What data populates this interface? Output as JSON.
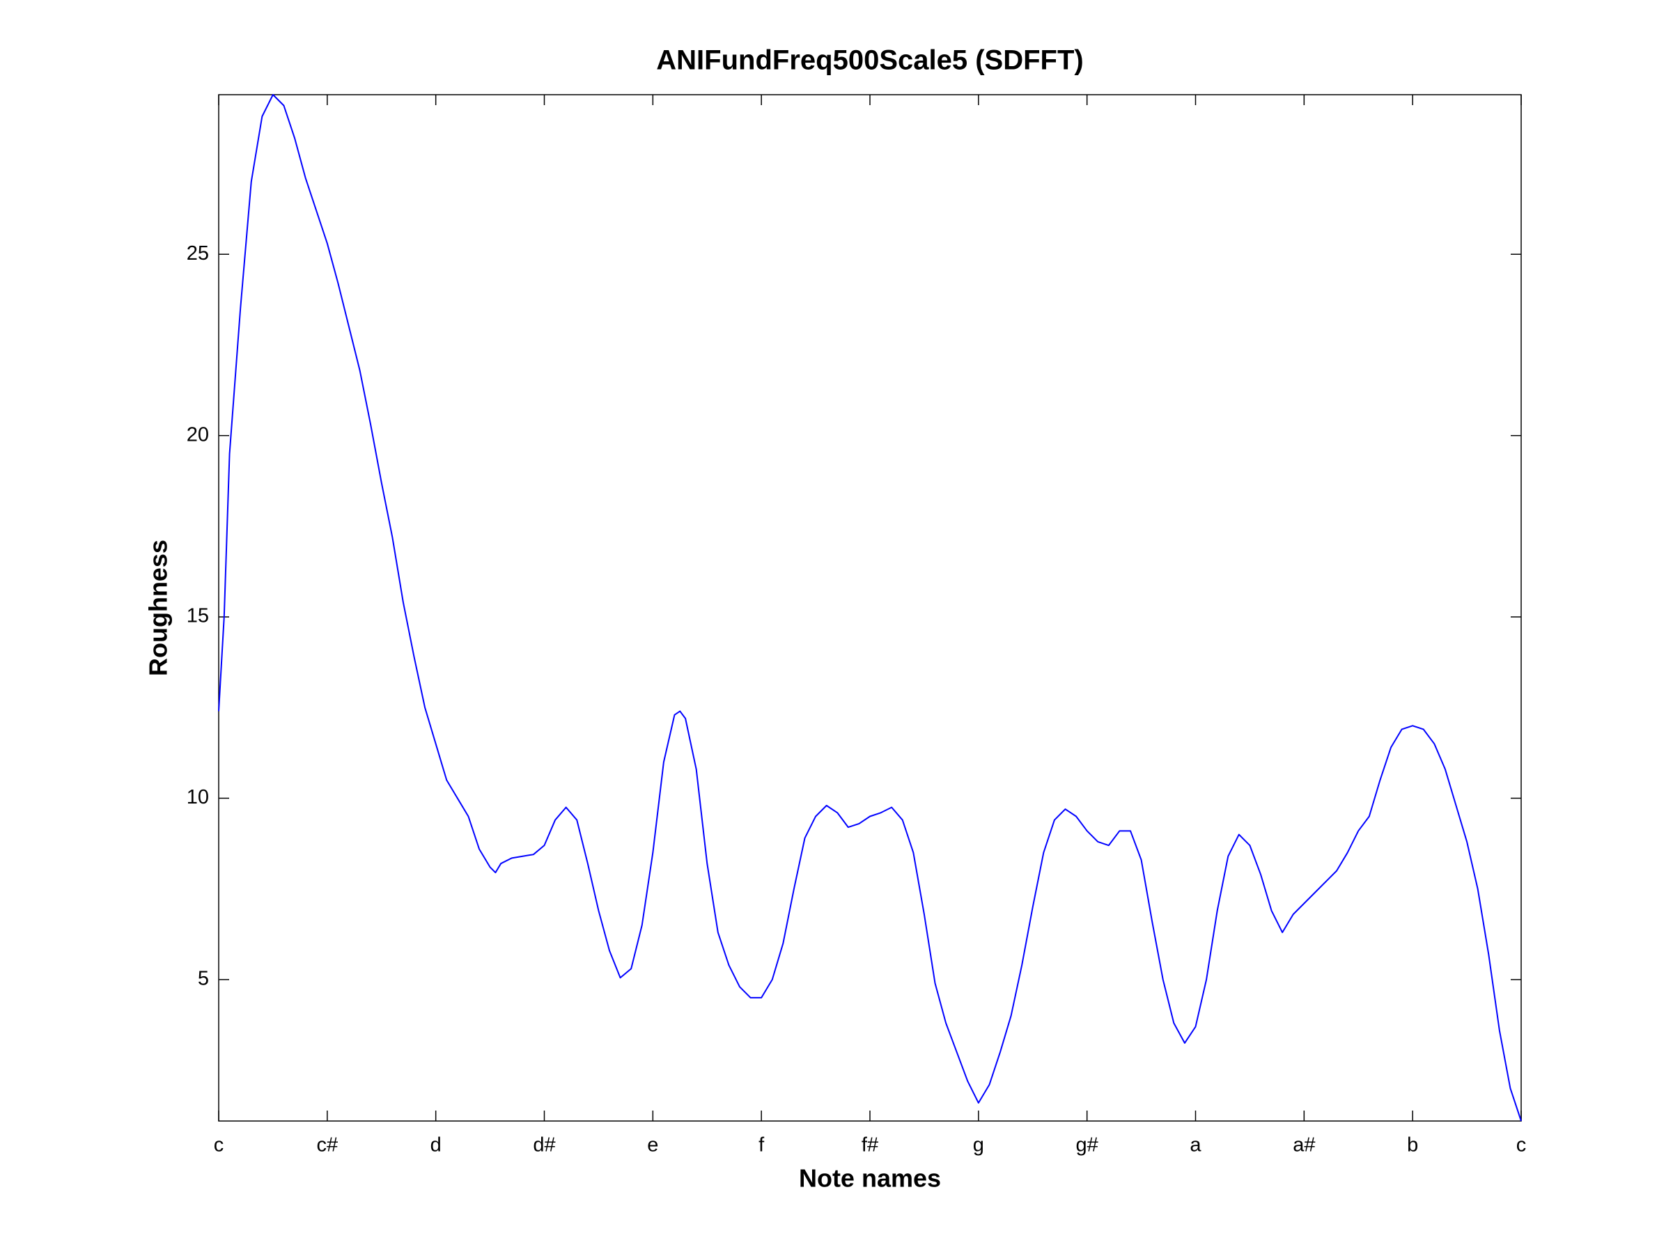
{
  "chart_data": {
    "type": "line",
    "title": "ANIFundFreq500Scale5 (SDFFT)",
    "xlabel": "Note names",
    "ylabel": "Roughness",
    "xlim": [
      0,
      12
    ],
    "ylim": [
      1.1,
      29.4
    ],
    "xticks": [
      {
        "value": 0,
        "label": "c"
      },
      {
        "value": 1,
        "label": "c#"
      },
      {
        "value": 2,
        "label": "d"
      },
      {
        "value": 3,
        "label": "d#"
      },
      {
        "value": 4,
        "label": "e"
      },
      {
        "value": 5,
        "label": "f"
      },
      {
        "value": 6,
        "label": "f#"
      },
      {
        "value": 7,
        "label": "g"
      },
      {
        "value": 8,
        "label": "g#"
      },
      {
        "value": 9,
        "label": "a"
      },
      {
        "value": 10,
        "label": "a#"
      },
      {
        "value": 11,
        "label": "b"
      },
      {
        "value": 12,
        "label": "c"
      }
    ],
    "yticks": [
      5,
      10,
      15,
      20,
      25
    ],
    "grid": false,
    "color": "#0000ff",
    "x": [
      0,
      0.05,
      0.1,
      0.2,
      0.3,
      0.4,
      0.5,
      0.6,
      0.7,
      0.8,
      0.9,
      1.0,
      1.1,
      1.2,
      1.3,
      1.4,
      1.5,
      1.6,
      1.7,
      1.8,
      1.9,
      2.0,
      2.1,
      2.2,
      2.3,
      2.4,
      2.5,
      2.55,
      2.6,
      2.7,
      2.8,
      2.9,
      3.0,
      3.1,
      3.2,
      3.3,
      3.4,
      3.5,
      3.6,
      3.7,
      3.8,
      3.9,
      4.0,
      4.1,
      4.2,
      4.25,
      4.3,
      4.4,
      4.5,
      4.6,
      4.7,
      4.8,
      4.9,
      5.0,
      5.1,
      5.2,
      5.3,
      5.4,
      5.5,
      5.6,
      5.7,
      5.8,
      5.9,
      6.0,
      6.1,
      6.2,
      6.3,
      6.4,
      6.5,
      6.6,
      6.7,
      6.8,
      6.9,
      7.0,
      7.1,
      7.2,
      7.3,
      7.4,
      7.5,
      7.6,
      7.7,
      7.8,
      7.9,
      8.0,
      8.1,
      8.2,
      8.3,
      8.4,
      8.5,
      8.6,
      8.7,
      8.8,
      8.9,
      9.0,
      9.1,
      9.2,
      9.3,
      9.4,
      9.5,
      9.6,
      9.7,
      9.8,
      9.9,
      10.0,
      10.1,
      10.2,
      10.3,
      10.4,
      10.5,
      10.6,
      10.7,
      10.8,
      10.9,
      11.0,
      11.1,
      11.2,
      11.3,
      11.4,
      11.5,
      11.6,
      11.7,
      11.8,
      11.9,
      12.0
    ],
    "values": [
      12.4,
      15,
      19.5,
      23.5,
      27,
      28.8,
      29.4,
      29.1,
      28.2,
      27.1,
      26.2,
      25.3,
      24.2,
      23,
      21.8,
      20.3,
      18.7,
      17.2,
      15.4,
      13.9,
      12.5,
      11.5,
      10.5,
      10.0,
      9.5,
      8.6,
      8.1,
      7.95,
      8.2,
      8.35,
      8.4,
      8.45,
      8.7,
      9.4,
      9.75,
      9.4,
      8.2,
      6.9,
      5.8,
      5.05,
      5.3,
      6.5,
      8.5,
      11.0,
      12.3,
      12.4,
      12.2,
      10.8,
      8.2,
      6.3,
      5.4,
      4.8,
      4.5,
      4.5,
      5.0,
      6.0,
      7.5,
      8.9,
      9.5,
      9.8,
      9.6,
      9.2,
      9.3,
      9.5,
      9.6,
      9.75,
      9.4,
      8.5,
      6.8,
      4.9,
      3.8,
      3.0,
      2.2,
      1.6,
      2.1,
      3.0,
      4.0,
      5.4,
      7.0,
      8.5,
      9.4,
      9.7,
      9.5,
      9.1,
      8.8,
      8.7,
      9.1,
      9.1,
      8.3,
      6.6,
      5.0,
      3.8,
      3.25,
      3.7,
      5.0,
      6.9,
      8.4,
      9.0,
      8.7,
      7.9,
      6.9,
      6.3,
      6.8,
      7.1,
      7.4,
      7.7,
      8.0,
      8.5,
      9.1,
      9.5,
      10.5,
      11.4,
      11.9,
      12.0,
      11.9,
      11.5,
      10.8,
      9.8,
      8.8,
      7.5,
      5.7,
      3.6,
      2.0,
      1.1
    ]
  }
}
